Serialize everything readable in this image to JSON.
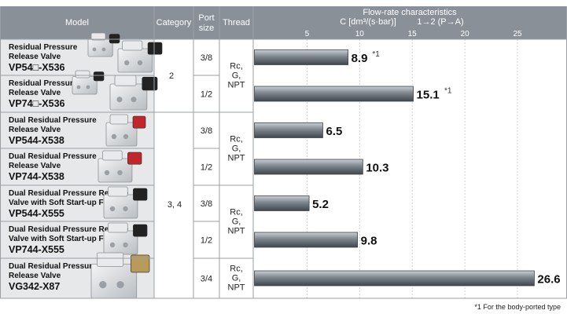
{
  "header": {
    "model": "Model",
    "category": "Category",
    "port_size_line1": "Port",
    "port_size_line2": "size",
    "thread": "Thread",
    "flow_title": "Flow-rate characteristics",
    "flow_unit": "C [dm³/(s·bar)]",
    "flow_direction": "1→2 (P→A)"
  },
  "models": [
    {
      "name_lines": [
        "Residual Pressure",
        "Release Valve"
      ],
      "code": "VP54□-X536"
    },
    {
      "name_lines": [
        "Residual Pressure",
        "Release Valve"
      ],
      "code": "VP74□-X536"
    },
    {
      "name_lines": [
        "Dual Residual Pressure",
        "Release Valve"
      ],
      "code": "VP544-X538"
    },
    {
      "name_lines": [
        "Dual Residual Pressure",
        "Release Valve"
      ],
      "code": "VP744-X538"
    },
    {
      "name_lines": [
        "Dual Residual Pressure Release",
        "Valve with Soft Start-up Function"
      ],
      "code": "VP544-X555"
    },
    {
      "name_lines": [
        "Dual Residual Pressure Release",
        "Valve with Soft Start-up Function"
      ],
      "code": "VP744-X555"
    },
    {
      "name_lines": [
        "Dual Residual Pressure",
        "Release Valve"
      ],
      "code": "VG342-X87"
    }
  ],
  "categories": [
    "2",
    "3, 4"
  ],
  "port_sizes": [
    "3/8",
    "1/2",
    "3/8",
    "1/2",
    "3/8",
    "1/2",
    "3/4"
  ],
  "thread_lines": [
    "Rc,",
    "G,",
    "NPT"
  ],
  "chart_data": {
    "type": "bar",
    "orientation": "horizontal",
    "title": "Flow-rate characteristics",
    "xlabel": "C [dm³/(s·bar)]   1→2 (P→A)",
    "categories": [
      "VP54□-X536",
      "VP74□-X536",
      "VP544-X538",
      "VP744-X538",
      "VP544-X555",
      "VP744-X555",
      "VG342-X87"
    ],
    "values": [
      8.9,
      15.1,
      6.5,
      10.3,
      5.2,
      9.8,
      26.6
    ],
    "value_labels": [
      "8.9",
      "15.1",
      "6.5",
      "10.3",
      "5.2",
      "9.8",
      "26.6"
    ],
    "value_notes": [
      "*1",
      "*1",
      "",
      "",
      "",
      "",
      ""
    ],
    "xticks": [
      5,
      10,
      15,
      20,
      25
    ],
    "xlim": [
      0,
      28.75
    ],
    "grid": true,
    "legend": "none",
    "colors": {
      "bar": "#6f7780",
      "bar_light": "#c9cfd5",
      "header": "#8a9098",
      "model_cell": "#e6e8ea"
    }
  },
  "footnote": "*1  For the body-ported type"
}
